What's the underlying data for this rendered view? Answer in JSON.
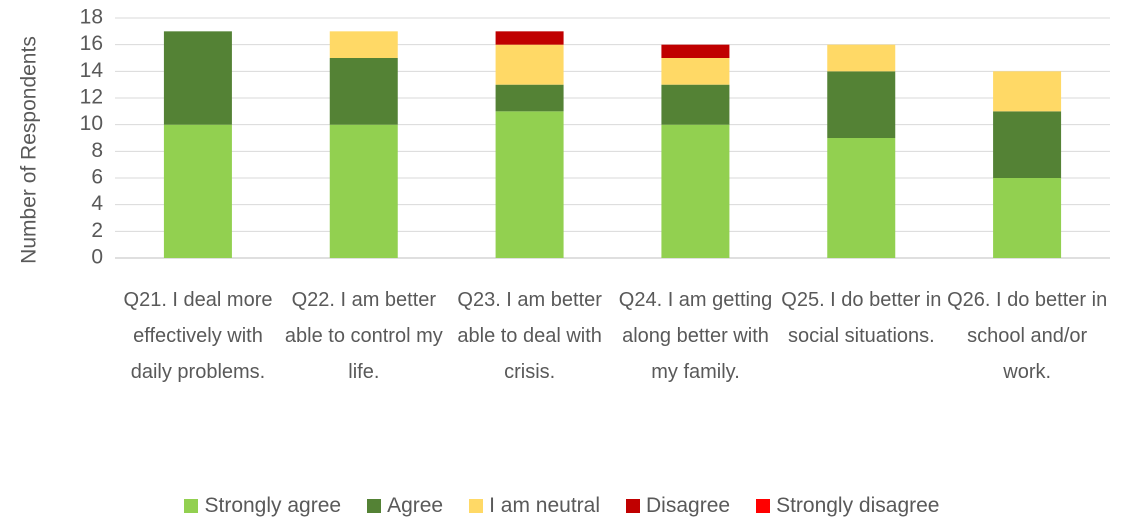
{
  "chart_data": {
    "type": "stacked_bar",
    "y_label": "Number of Respondents",
    "categories": [
      "Q21. I deal more effectively with daily problems.",
      "Q22. I am better able to control my life.",
      "Q23. I am better able to deal with crisis.",
      "Q24. I am getting along better with my family.",
      "Q25. I do better in social situations.",
      "Q26. I do better in school and/or work."
    ],
    "series": [
      {
        "name": "Strongly agree",
        "color": "#92d050",
        "values": [
          10,
          10,
          11,
          10,
          9,
          6
        ]
      },
      {
        "name": "Agree",
        "color": "#548235",
        "values": [
          7,
          5,
          2,
          3,
          5,
          5
        ]
      },
      {
        "name": "I am neutral",
        "color": "#ffd966",
        "values": [
          0,
          2,
          3,
          2,
          2,
          3
        ]
      },
      {
        "name": "Disagree",
        "color": "#c00000",
        "values": [
          0,
          0,
          1,
          1,
          0,
          0
        ]
      },
      {
        "name": "Strongly disagree",
        "color": "#ff0000",
        "values": [
          0,
          0,
          0,
          0,
          0,
          0
        ]
      }
    ],
    "ylim": [
      0,
      18
    ],
    "yticks": [
      0,
      2,
      4,
      6,
      8,
      10,
      12,
      14,
      16,
      18
    ],
    "grid": true,
    "legend": "bottom"
  }
}
